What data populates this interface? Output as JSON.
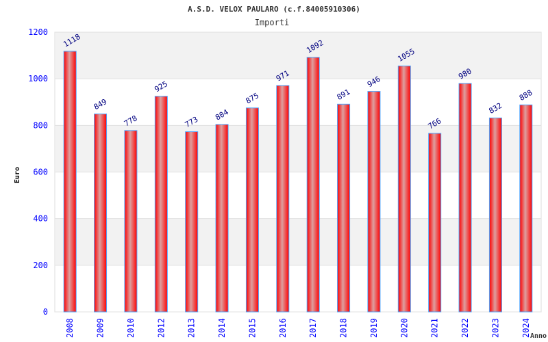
{
  "chart_data": {
    "type": "bar",
    "title": "A.S.D. VELOX PAULARO (c.f.84005910306)",
    "subtitle": "Importi",
    "xlabel": "Anno",
    "ylabel": "Euro",
    "ylim": [
      0,
      1200
    ],
    "yticks": [
      "0",
      "200",
      "400",
      "600",
      "800",
      "1000",
      "1200"
    ],
    "categories": [
      "2008",
      "2009",
      "2010",
      "2012",
      "2013",
      "2014",
      "2015",
      "2016",
      "2017",
      "2018",
      "2019",
      "2020",
      "2021",
      "2022",
      "2023",
      "2024"
    ],
    "values": [
      1118,
      849,
      778,
      925,
      773,
      804,
      875,
      971,
      1092,
      891,
      946,
      1055,
      766,
      980,
      832,
      888
    ],
    "grid": true,
    "colors": {
      "bar": "#ff0000",
      "bar_edge": "#4da6ff",
      "label": "#000080",
      "axis_text": "#0000ff",
      "band": "#f2f2f2"
    }
  }
}
